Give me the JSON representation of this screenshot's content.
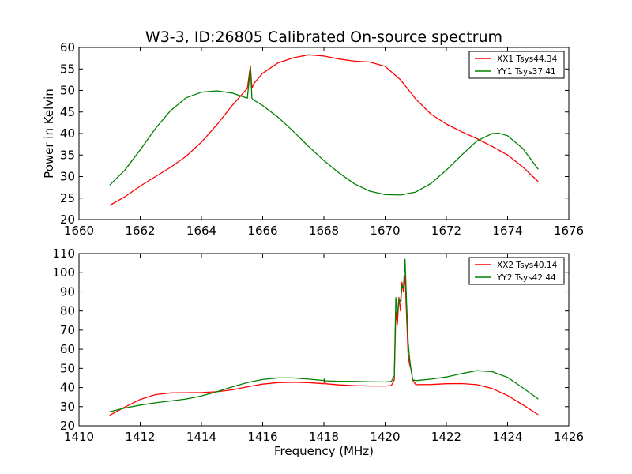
{
  "figure": {
    "title": "W3-3, ID:26805 Calibrated On-source spectrum"
  },
  "colors": {
    "red": "#ff0000",
    "green": "#008000",
    "axes": "#000000",
    "background": "#ffffff"
  },
  "chart_data": [
    {
      "type": "line",
      "title": "W3-3, ID:26805 Calibrated On-source spectrum",
      "xlabel": "",
      "ylabel": "Power in Kelvin",
      "xlim": [
        1660,
        1676
      ],
      "ylim": [
        20,
        60
      ],
      "xticks": [
        1660,
        1662,
        1664,
        1666,
        1668,
        1670,
        1672,
        1674,
        1676
      ],
      "yticks": [
        20,
        25,
        30,
        35,
        40,
        45,
        50,
        55,
        60
      ],
      "grid": false,
      "legend_position": "top-right",
      "series": [
        {
          "name": "XX1 Tsys44.34",
          "color": "red",
          "x": [
            1661.0,
            1661.5,
            1662.0,
            1662.5,
            1663.0,
            1663.5,
            1664.0,
            1664.5,
            1665.0,
            1665.5,
            1665.6,
            1665.65,
            1665.7,
            1666.0,
            1666.5,
            1667.0,
            1667.5,
            1668.0,
            1668.5,
            1669.0,
            1669.5,
            1670.0,
            1670.5,
            1671.0,
            1671.5,
            1672.0,
            1672.5,
            1673.0,
            1673.5,
            1674.0,
            1674.5,
            1675.0
          ],
          "values": [
            23.3,
            25.3,
            27.8,
            30.0,
            32.2,
            34.7,
            38.0,
            42.0,
            46.5,
            50.5,
            55.7,
            50.5,
            51.5,
            54.0,
            56.4,
            57.6,
            58.3,
            58.0,
            57.3,
            56.8,
            56.6,
            55.6,
            52.5,
            48.0,
            44.5,
            42.2,
            40.4,
            38.8,
            37.0,
            35.0,
            32.2,
            28.8
          ]
        },
        {
          "name": "YY1 Tsys37.41",
          "color": "green",
          "x": [
            1661.0,
            1661.5,
            1662.0,
            1662.5,
            1663.0,
            1663.5,
            1664.0,
            1664.5,
            1665.0,
            1665.5,
            1665.6,
            1665.65,
            1665.7,
            1666.0,
            1666.5,
            1667.0,
            1667.5,
            1668.0,
            1668.5,
            1669.0,
            1669.5,
            1670.0,
            1670.5,
            1671.0,
            1671.5,
            1672.0,
            1672.5,
            1673.0,
            1673.5,
            1673.7,
            1674.0,
            1674.5,
            1675.0
          ],
          "values": [
            28.0,
            31.5,
            36.2,
            41.2,
            45.4,
            48.3,
            49.6,
            49.9,
            49.4,
            48.2,
            55.3,
            48.2,
            47.8,
            46.5,
            43.8,
            40.5,
            37.0,
            33.7,
            30.8,
            28.3,
            26.6,
            25.8,
            25.7,
            26.4,
            28.4,
            31.5,
            35.0,
            38.3,
            40.0,
            40.1,
            39.5,
            36.5,
            31.7
          ]
        }
      ]
    },
    {
      "type": "line",
      "title": "",
      "xlabel": "Frequency (MHz)",
      "ylabel": "",
      "xlim": [
        1410,
        1426
      ],
      "ylim": [
        20,
        110
      ],
      "xticks": [
        1410,
        1412,
        1414,
        1416,
        1418,
        1420,
        1422,
        1424,
        1426
      ],
      "yticks": [
        20,
        30,
        40,
        50,
        60,
        70,
        80,
        90,
        100,
        110
      ],
      "grid": false,
      "legend_position": "top-right",
      "series": [
        {
          "name": "XX2 Tsys40.14",
          "color": "red",
          "x": [
            1411.0,
            1411.5,
            1412.0,
            1412.5,
            1413.0,
            1413.5,
            1414.0,
            1414.5,
            1415.0,
            1415.5,
            1416.0,
            1416.5,
            1417.0,
            1417.5,
            1418.0,
            1418.02,
            1418.05,
            1418.5,
            1419.0,
            1419.5,
            1420.0,
            1420.2,
            1420.3,
            1420.35,
            1420.4,
            1420.45,
            1420.5,
            1420.55,
            1420.6,
            1420.65,
            1420.7,
            1420.75,
            1420.8,
            1420.85,
            1420.9,
            1421.0,
            1421.5,
            1422.0,
            1422.5,
            1423.0,
            1423.5,
            1424.0,
            1424.5,
            1425.0
          ],
          "values": [
            25.5,
            29.8,
            33.8,
            36.3,
            37.2,
            37.3,
            37.4,
            37.8,
            38.8,
            40.4,
            41.8,
            42.6,
            42.8,
            42.6,
            42.0,
            44.0,
            42.0,
            41.4,
            41.0,
            40.8,
            40.8,
            41.0,
            44.0,
            80.0,
            73.0,
            87.0,
            80.0,
            95.0,
            90.0,
            98.5,
            78.0,
            57.0,
            52.0,
            49.5,
            44.0,
            41.5,
            41.6,
            42.0,
            42.1,
            41.5,
            39.5,
            35.8,
            31.0,
            25.8
          ]
        },
        {
          "name": "YY2 Tsys42.44",
          "color": "green",
          "x": [
            1411.0,
            1411.5,
            1412.0,
            1412.5,
            1413.0,
            1413.5,
            1414.0,
            1414.5,
            1415.0,
            1415.5,
            1416.0,
            1416.5,
            1417.0,
            1417.5,
            1418.0,
            1418.02,
            1418.05,
            1418.5,
            1419.0,
            1419.5,
            1420.0,
            1420.2,
            1420.3,
            1420.35,
            1420.4,
            1420.45,
            1420.5,
            1420.55,
            1420.6,
            1420.65,
            1420.7,
            1420.75,
            1420.8,
            1420.85,
            1420.9,
            1421.0,
            1421.5,
            1422.0,
            1422.5,
            1423.0,
            1423.5,
            1424.0,
            1424.5,
            1425.0
          ],
          "values": [
            27.3,
            29.3,
            30.8,
            32.0,
            33.0,
            34.0,
            35.6,
            37.8,
            40.3,
            42.6,
            44.2,
            45.0,
            45.0,
            44.4,
            43.7,
            44.7,
            43.5,
            43.3,
            43.2,
            43.0,
            42.9,
            43.2,
            46.0,
            87.0,
            78.0,
            86.0,
            85.0,
            93.0,
            92.0,
            107.0,
            85.0,
            64.0,
            55.0,
            49.0,
            44.0,
            43.6,
            44.4,
            45.5,
            47.3,
            48.8,
            48.3,
            45.3,
            39.8,
            34.0
          ]
        }
      ]
    }
  ]
}
